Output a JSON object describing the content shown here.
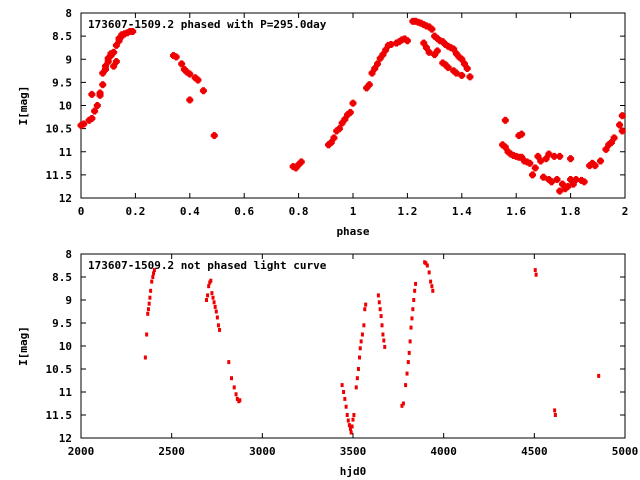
{
  "colors": {
    "points": "#ee0000",
    "axes": "#000000",
    "background": "#ffffff"
  },
  "chart_data": [
    {
      "type": "scatter",
      "title": "173607-1509.2 phased with P=295.0day",
      "xlabel": "phase",
      "ylabel": "I[mag]",
      "xlim": [
        0,
        2
      ],
      "ylim": [
        12,
        8
      ],
      "y_inverted": true,
      "grid": false,
      "xticks": [
        "0",
        "0.2",
        "0.4",
        "0.6",
        "0.8",
        "1",
        "1.2",
        "1.4",
        "1.6",
        "1.8",
        "2"
      ],
      "yticks": [
        "8",
        "8.5",
        "9",
        "9.5",
        "10",
        "10.5",
        "11",
        "11.5",
        "12"
      ],
      "marker": "plus",
      "points": [
        [
          0.0,
          10.43
        ],
        [
          0.01,
          10.4
        ],
        [
          0.03,
          10.32
        ],
        [
          0.04,
          10.28
        ],
        [
          0.04,
          9.76
        ],
        [
          0.05,
          10.12
        ],
        [
          0.06,
          10.0
        ],
        [
          0.07,
          9.78
        ],
        [
          0.07,
          9.73
        ],
        [
          0.08,
          9.55
        ],
        [
          0.08,
          9.3
        ],
        [
          0.09,
          9.22
        ],
        [
          0.09,
          9.15
        ],
        [
          0.1,
          9.05
        ],
        [
          0.1,
          8.98
        ],
        [
          0.11,
          8.92
        ],
        [
          0.11,
          8.88
        ],
        [
          0.12,
          8.85
        ],
        [
          0.12,
          9.15
        ],
        [
          0.13,
          9.05
        ],
        [
          0.13,
          8.7
        ],
        [
          0.14,
          8.6
        ],
        [
          0.14,
          8.55
        ],
        [
          0.15,
          8.5
        ],
        [
          0.15,
          8.47
        ],
        [
          0.16,
          8.45
        ],
        [
          0.17,
          8.43
        ],
        [
          0.18,
          8.4
        ],
        [
          0.19,
          8.4
        ],
        [
          0.34,
          8.92
        ],
        [
          0.35,
          8.95
        ],
        [
          0.37,
          9.1
        ],
        [
          0.38,
          9.22
        ],
        [
          0.39,
          9.28
        ],
        [
          0.4,
          9.32
        ],
        [
          0.4,
          9.88
        ],
        [
          0.42,
          9.4
        ],
        [
          0.43,
          9.45
        ],
        [
          0.45,
          9.68
        ],
        [
          0.49,
          10.65
        ],
        [
          0.78,
          11.32
        ],
        [
          0.79,
          11.35
        ],
        [
          0.8,
          11.28
        ],
        [
          0.81,
          11.22
        ],
        [
          0.91,
          10.85
        ],
        [
          0.92,
          10.8
        ],
        [
          0.93,
          10.7
        ],
        [
          0.94,
          10.55
        ],
        [
          0.95,
          10.5
        ],
        [
          0.96,
          10.38
        ],
        [
          0.97,
          10.3
        ],
        [
          0.98,
          10.2
        ],
        [
          0.99,
          10.15
        ],
        [
          1.0,
          9.95
        ],
        [
          1.05,
          9.62
        ],
        [
          1.06,
          9.55
        ],
        [
          1.07,
          9.3
        ],
        [
          1.08,
          9.2
        ],
        [
          1.09,
          9.1
        ],
        [
          1.1,
          8.98
        ],
        [
          1.11,
          8.9
        ],
        [
          1.12,
          8.8
        ],
        [
          1.13,
          8.7
        ],
        [
          1.14,
          8.68
        ],
        [
          1.16,
          8.65
        ],
        [
          1.17,
          8.62
        ],
        [
          1.18,
          8.58
        ],
        [
          1.19,
          8.56
        ],
        [
          1.2,
          8.6
        ],
        [
          1.22,
          8.18
        ],
        [
          1.23,
          8.18
        ],
        [
          1.24,
          8.2
        ],
        [
          1.25,
          8.22
        ],
        [
          1.26,
          8.25
        ],
        [
          1.27,
          8.28
        ],
        [
          1.28,
          8.3
        ],
        [
          1.29,
          8.35
        ],
        [
          1.3,
          8.5
        ],
        [
          1.31,
          8.55
        ],
        [
          1.32,
          8.6
        ],
        [
          1.33,
          8.62
        ],
        [
          1.34,
          8.68
        ],
        [
          1.35,
          8.72
        ],
        [
          1.36,
          8.75
        ],
        [
          1.37,
          8.78
        ],
        [
          1.38,
          8.88
        ],
        [
          1.39,
          8.95
        ],
        [
          1.4,
          9.0
        ],
        [
          1.41,
          9.1
        ],
        [
          1.42,
          9.2
        ],
        [
          1.43,
          9.38
        ],
        [
          1.26,
          8.65
        ],
        [
          1.27,
          8.75
        ],
        [
          1.28,
          8.85
        ],
        [
          1.3,
          8.9
        ],
        [
          1.31,
          8.82
        ],
        [
          1.33,
          9.08
        ],
        [
          1.34,
          9.12
        ],
        [
          1.35,
          9.18
        ],
        [
          1.37,
          9.25
        ],
        [
          1.38,
          9.3
        ],
        [
          1.4,
          9.35
        ],
        [
          1.55,
          10.85
        ],
        [
          1.56,
          10.32
        ],
        [
          1.56,
          10.9
        ],
        [
          1.57,
          11.0
        ],
        [
          1.58,
          11.05
        ],
        [
          1.59,
          11.08
        ],
        [
          1.6,
          11.1
        ],
        [
          1.61,
          11.12
        ],
        [
          1.61,
          10.65
        ],
        [
          1.62,
          10.62
        ],
        [
          1.62,
          11.12
        ],
        [
          1.63,
          11.2
        ],
        [
          1.64,
          11.22
        ],
        [
          1.65,
          11.25
        ],
        [
          1.66,
          11.5
        ],
        [
          1.67,
          11.35
        ],
        [
          1.68,
          11.1
        ],
        [
          1.69,
          11.2
        ],
        [
          1.7,
          11.55
        ],
        [
          1.71,
          11.15
        ],
        [
          1.72,
          11.6
        ],
        [
          1.72,
          11.05
        ],
        [
          1.73,
          11.65
        ],
        [
          1.74,
          11.1
        ],
        [
          1.75,
          11.6
        ],
        [
          1.76,
          11.85
        ],
        [
          1.76,
          11.1
        ],
        [
          1.77,
          11.7
        ],
        [
          1.78,
          11.8
        ],
        [
          1.79,
          11.75
        ],
        [
          1.8,
          11.6
        ],
        [
          1.8,
          11.15
        ],
        [
          1.81,
          11.7
        ],
        [
          1.82,
          11.6
        ],
        [
          1.84,
          11.62
        ],
        [
          1.85,
          11.65
        ],
        [
          1.87,
          11.3
        ],
        [
          1.88,
          11.25
        ],
        [
          1.89,
          11.3
        ],
        [
          1.91,
          11.2
        ],
        [
          1.93,
          10.95
        ],
        [
          1.94,
          10.85
        ],
        [
          1.95,
          10.8
        ],
        [
          1.96,
          10.7
        ],
        [
          1.98,
          10.42
        ],
        [
          1.99,
          10.22
        ],
        [
          1.99,
          10.55
        ]
      ]
    },
    {
      "type": "scatter",
      "title": "173607-1509.2 not phased light curve",
      "xlabel": "hjd0",
      "ylabel": "I[mag]",
      "xlim": [
        2000,
        5000
      ],
      "ylim": [
        12,
        8
      ],
      "y_inverted": true,
      "grid": false,
      "xticks": [
        "2000",
        "2500",
        "3000",
        "3500",
        "4000",
        "4500",
        "5000"
      ],
      "yticks": [
        "8",
        "8.5",
        "9",
        "9.5",
        "10",
        "10.5",
        "11",
        "11.5",
        "12"
      ],
      "marker": "dot",
      "points": [
        [
          2355,
          10.25
        ],
        [
          2362,
          9.75
        ],
        [
          2368,
          9.3
        ],
        [
          2372,
          9.2
        ],
        [
          2376,
          9.08
        ],
        [
          2380,
          8.95
        ],
        [
          2384,
          8.8
        ],
        [
          2390,
          8.6
        ],
        [
          2396,
          8.5
        ],
        [
          2400,
          8.42
        ],
        [
          2405,
          8.35
        ],
        [
          2692,
          9.0
        ],
        [
          2698,
          8.9
        ],
        [
          2704,
          8.7
        ],
        [
          2710,
          8.62
        ],
        [
          2716,
          8.58
        ],
        [
          2722,
          8.85
        ],
        [
          2728,
          8.95
        ],
        [
          2734,
          9.05
        ],
        [
          2740,
          9.15
        ],
        [
          2746,
          9.25
        ],
        [
          2752,
          9.38
        ],
        [
          2758,
          9.55
        ],
        [
          2764,
          9.65
        ],
        [
          2815,
          10.35
        ],
        [
          2830,
          10.7
        ],
        [
          2845,
          10.9
        ],
        [
          2855,
          11.05
        ],
        [
          2862,
          11.15
        ],
        [
          2870,
          11.2
        ],
        [
          2876,
          11.18
        ],
        [
          3440,
          10.85
        ],
        [
          3448,
          11.0
        ],
        [
          3455,
          11.15
        ],
        [
          3462,
          11.32
        ],
        [
          3468,
          11.5
        ],
        [
          3474,
          11.62
        ],
        [
          3480,
          11.72
        ],
        [
          3486,
          11.8
        ],
        [
          3490,
          11.88
        ],
        [
          3495,
          11.75
        ],
        [
          3500,
          11.6
        ],
        [
          3505,
          11.5
        ],
        [
          3518,
          10.9
        ],
        [
          3524,
          10.7
        ],
        [
          3530,
          10.5
        ],
        [
          3536,
          10.25
        ],
        [
          3540,
          10.05
        ],
        [
          3545,
          9.9
        ],
        [
          3552,
          9.75
        ],
        [
          3560,
          9.55
        ],
        [
          3565,
          9.2
        ],
        [
          3570,
          9.1
        ],
        [
          3640,
          8.9
        ],
        [
          3645,
          9.05
        ],
        [
          3650,
          9.2
        ],
        [
          3655,
          9.35
        ],
        [
          3660,
          9.55
        ],
        [
          3665,
          9.75
        ],
        [
          3670,
          9.88
        ],
        [
          3675,
          10.02
        ],
        [
          3770,
          11.3
        ],
        [
          3778,
          11.25
        ],
        [
          3790,
          10.85
        ],
        [
          3798,
          10.6
        ],
        [
          3805,
          10.35
        ],
        [
          3810,
          10.15
        ],
        [
          3815,
          9.9
        ],
        [
          3820,
          9.6
        ],
        [
          3825,
          9.4
        ],
        [
          3830,
          9.2
        ],
        [
          3835,
          9.0
        ],
        [
          3840,
          8.8
        ],
        [
          3845,
          8.65
        ],
        [
          3895,
          8.18
        ],
        [
          3902,
          8.2
        ],
        [
          3910,
          8.25
        ],
        [
          3920,
          8.4
        ],
        [
          3928,
          8.6
        ],
        [
          3935,
          8.7
        ],
        [
          3940,
          8.8
        ],
        [
          4505,
          8.35
        ],
        [
          4510,
          8.45
        ],
        [
          4612,
          11.4
        ],
        [
          4616,
          11.5
        ],
        [
          4855,
          10.65
        ]
      ]
    }
  ]
}
